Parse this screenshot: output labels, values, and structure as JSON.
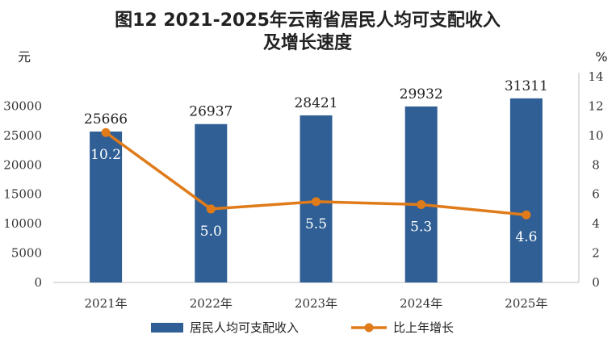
{
  "chart_data": {
    "type": "bar",
    "title_line1": "图12  2021-2025年云南省居民人均可支配收入",
    "title_line2": "及增长速度",
    "y_left_unit": "元",
    "y_right_unit": "%",
    "categories": [
      "2021年",
      "2022年",
      "2023年",
      "2024年",
      "2025年"
    ],
    "series": [
      {
        "name": "居民人均可支配收入",
        "type": "bar",
        "axis": "left",
        "color": "#2f5f95",
        "values": [
          25666,
          26937,
          28421,
          29932,
          31311
        ],
        "labels": [
          "25666",
          "26937",
          "28421",
          "29932",
          "31311"
        ]
      },
      {
        "name": "比上年增长",
        "type": "line",
        "axis": "right",
        "color": "#e07b1a",
        "values": [
          10.2,
          5.0,
          5.5,
          5.3,
          4.6
        ],
        "labels": [
          "10.2",
          "5.0",
          "5.5",
          "5.3",
          "4.6"
        ]
      }
    ],
    "y_left": {
      "min": 0,
      "max": 30000,
      "ticks": [
        "0",
        "5000",
        "10000",
        "15000",
        "20000",
        "25000",
        "30000"
      ]
    },
    "y_right": {
      "min": 0,
      "max": 14,
      "ticks": [
        "0",
        "2",
        "4",
        "6",
        "8",
        "10",
        "12",
        "14"
      ]
    },
    "grid": false,
    "legend_position": "bottom"
  }
}
